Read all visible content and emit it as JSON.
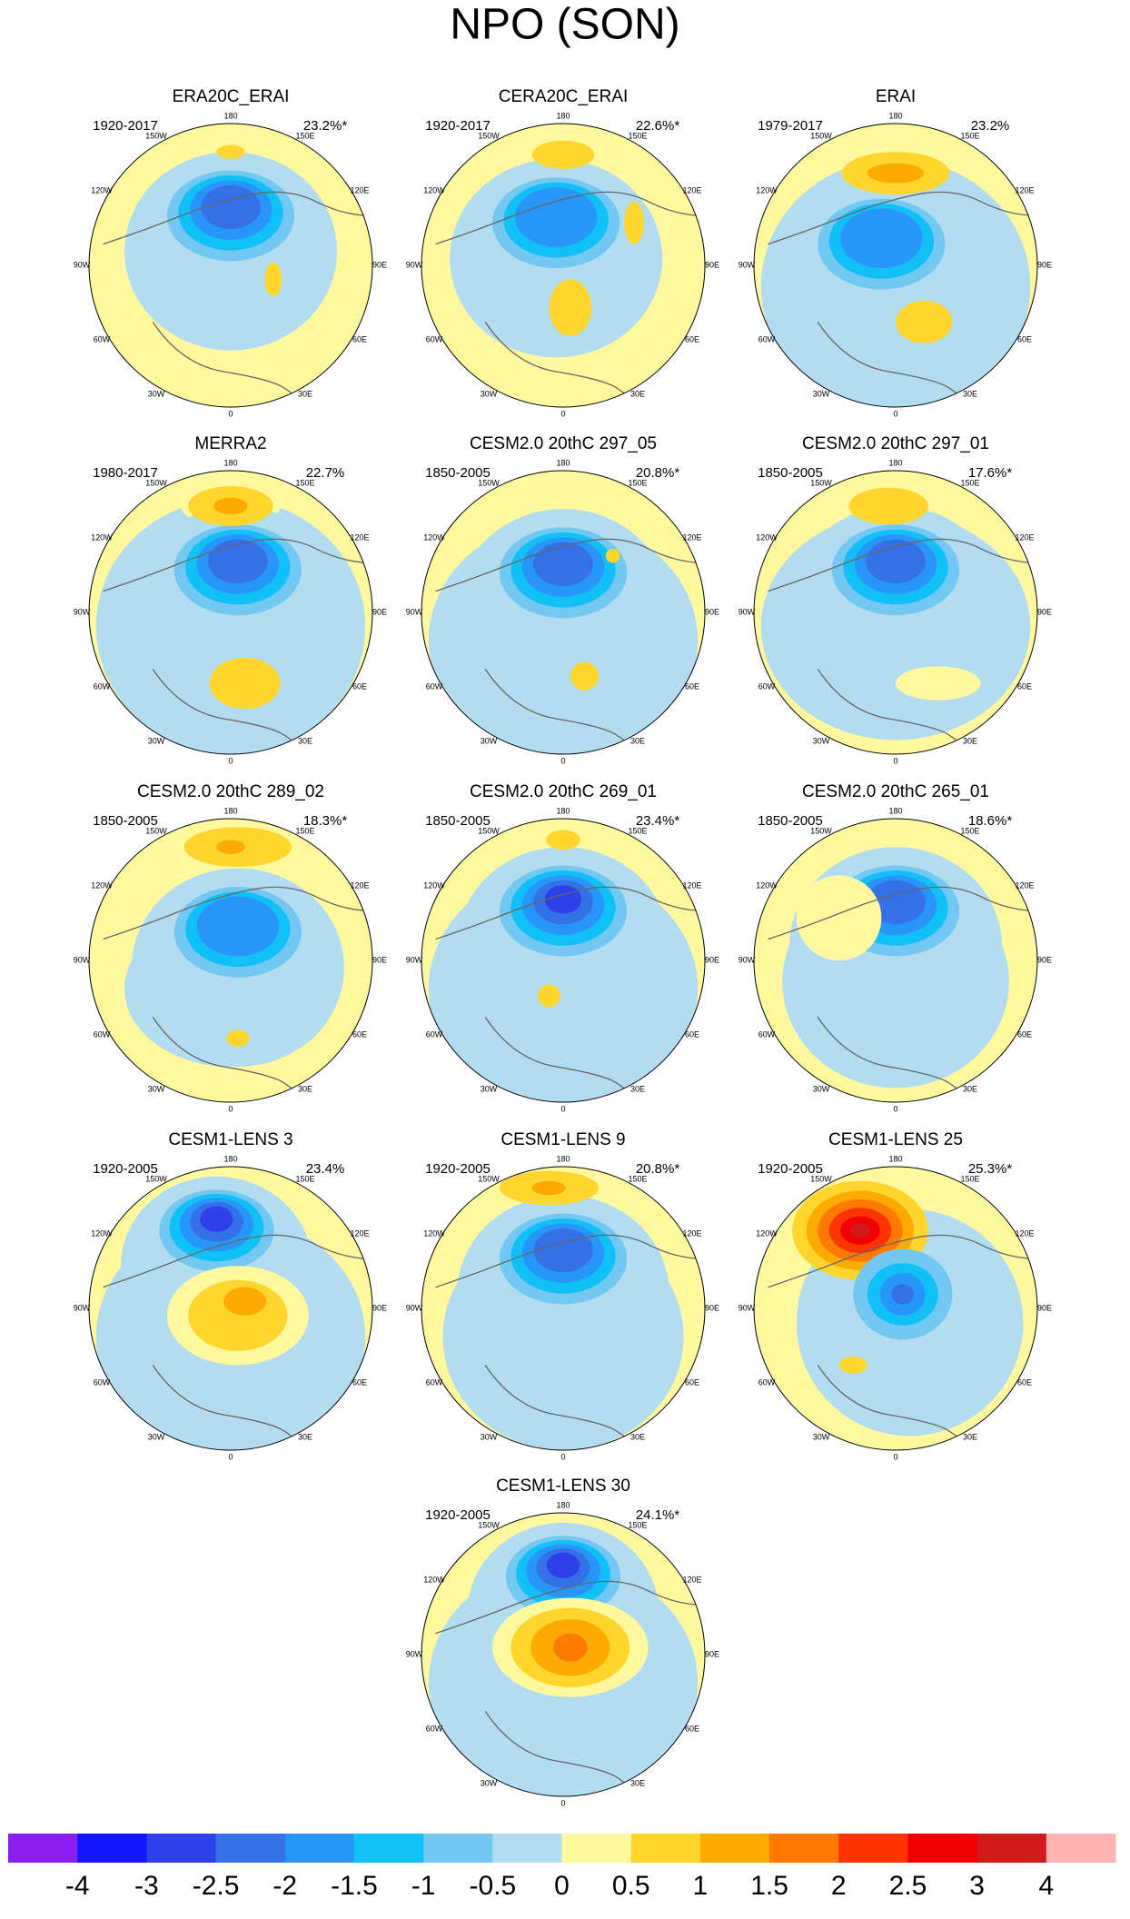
{
  "title": "NPO (SON)",
  "longitude_labels": [
    "180",
    "150E",
    "120E",
    "90E",
    "60E",
    "30E",
    "0",
    "30W",
    "60W",
    "90W",
    "120W",
    "150W"
  ],
  "panels": [
    {
      "title": "ERA20C_ERAI",
      "period": "1920-2017",
      "variance": "23.2%*"
    },
    {
      "title": "CERA20C_ERAI",
      "period": "1920-2017",
      "variance": "22.6%*"
    },
    {
      "title": "ERAI",
      "period": "1979-2017",
      "variance": "23.2%"
    },
    {
      "title": "MERRA2",
      "period": "1980-2017",
      "variance": "22.7%"
    },
    {
      "title": "CESM2.0 20thC 297_05",
      "period": "1850-2005",
      "variance": "20.8%*"
    },
    {
      "title": "CESM2.0 20thC 297_01",
      "period": "1850-2005",
      "variance": "17.6%*"
    },
    {
      "title": "CESM2.0 20thC 289_02",
      "period": "1850-2005",
      "variance": "18.3%*"
    },
    {
      "title": "CESM2.0 20thC 269_01",
      "period": "1850-2005",
      "variance": "23.4%*"
    },
    {
      "title": "CESM2.0 20thC 265_01",
      "period": "1850-2005",
      "variance": "18.6%*"
    },
    {
      "title": "CESM1-LENS 3",
      "period": "1920-2005",
      "variance": "23.4%"
    },
    {
      "title": "CESM1-LENS 9",
      "period": "1920-2005",
      "variance": "20.8%*"
    },
    {
      "title": "CESM1-LENS 25",
      "period": "1920-2005",
      "variance": "25.3%*"
    },
    {
      "title": "CESM1-LENS 30",
      "period": "1920-2005",
      "variance": "24.1%*"
    }
  ],
  "colorbar": {
    "levels": [
      -4,
      -3,
      -2.5,
      -2,
      -1.5,
      -1,
      -0.5,
      0,
      0.5,
      1,
      1.5,
      2,
      2.5,
      3,
      4
    ],
    "colors": [
      "#8a1ef0",
      "#1414ff",
      "#2e40ea",
      "#3470e8",
      "#2896f8",
      "#12c0f8",
      "#72c8f0",
      "#b2dcf0",
      "#fff89e",
      "#ffd52e",
      "#ffaa00",
      "#ff7a00",
      "#ff3400",
      "#f00000",
      "#d01a1a",
      "#ffb2b2"
    ]
  }
}
